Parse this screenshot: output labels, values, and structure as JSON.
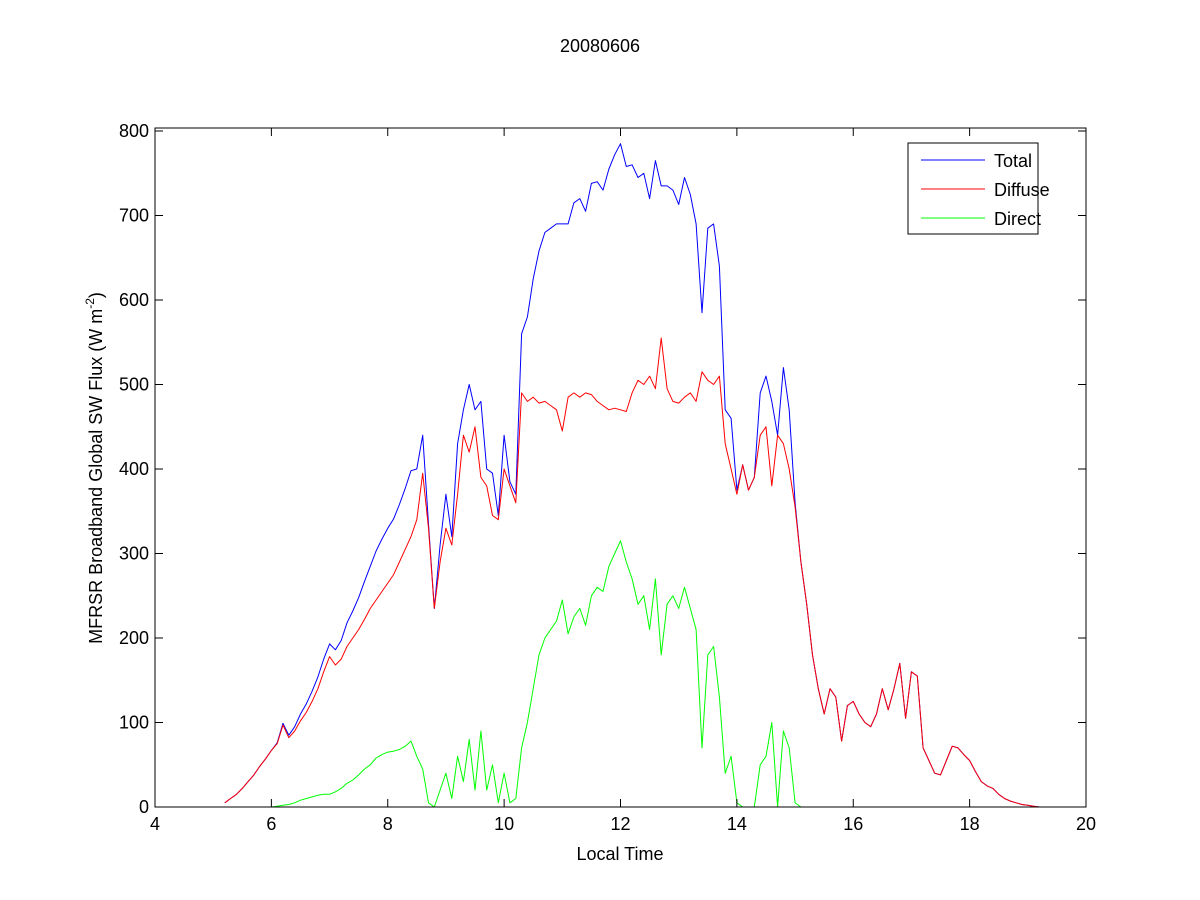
{
  "chart_data": {
    "type": "line",
    "title": "20080606",
    "xlabel": "Local Time",
    "ylabel": "MFRSR Broadband Global SW Flux (W m",
    "ylabel_superscript": "-2",
    "ylabel_suffix": ")",
    "xlim": [
      4,
      20
    ],
    "ylim": [
      0,
      800
    ],
    "xticks": [
      4,
      6,
      8,
      10,
      12,
      14,
      16,
      18,
      20
    ],
    "yticks": [
      0,
      100,
      200,
      300,
      400,
      500,
      600,
      700,
      800
    ],
    "grid": false,
    "legend_position": "top-right",
    "x": {
      "start": 5.2,
      "step": 0.1
    },
    "series": [
      {
        "name": "Total",
        "color": "#0000ff",
        "values": [
          5,
          10,
          15,
          22,
          30,
          38,
          48,
          57,
          67,
          76,
          99,
          85,
          95,
          110,
          122,
          137,
          154,
          175,
          193,
          186,
          197,
          218,
          232,
          248,
          267,
          285,
          303,
          317,
          330,
          341,
          358,
          377,
          398,
          400,
          440,
          335,
          235,
          310,
          370,
          320,
          430,
          470,
          500,
          470,
          480,
          400,
          395,
          345,
          440,
          385,
          370,
          560,
          580,
          625,
          658,
          680,
          685,
          690,
          690,
          690,
          715,
          720,
          705,
          738,
          740,
          730,
          755,
          772,
          785,
          758,
          760,
          745,
          750,
          720,
          765,
          735,
          735,
          730,
          713,
          745,
          725,
          690,
          585,
          685,
          690,
          640,
          470,
          460,
          375,
          405,
          375,
          390,
          490,
          510,
          480,
          440,
          520,
          470,
          360,
          290,
          240,
          180,
          140,
          110,
          140,
          130,
          78,
          120,
          125,
          110,
          100,
          95,
          110,
          140,
          115,
          140,
          170,
          105,
          160,
          155,
          70,
          55,
          40,
          38,
          55,
          72,
          70,
          62,
          55,
          42,
          30,
          25,
          22,
          15,
          10,
          7,
          5,
          3,
          2,
          1,
          0
        ]
      },
      {
        "name": "Diffuse",
        "color": "#ff0000",
        "values": [
          5,
          10,
          15,
          22,
          30,
          38,
          48,
          57,
          67,
          75,
          97,
          82,
          90,
          102,
          112,
          125,
          140,
          160,
          178,
          168,
          175,
          190,
          200,
          210,
          222,
          235,
          245,
          255,
          265,
          275,
          290,
          305,
          320,
          340,
          395,
          330,
          235,
          290,
          330,
          310,
          370,
          440,
          420,
          450,
          390,
          380,
          345,
          340,
          400,
          380,
          360,
          490,
          480,
          485,
          478,
          480,
          475,
          470,
          445,
          485,
          490,
          485,
          490,
          488,
          480,
          475,
          470,
          472,
          470,
          468,
          490,
          505,
          500,
          510,
          495,
          555,
          495,
          480,
          478,
          485,
          490,
          480,
          515,
          505,
          500,
          510,
          430,
          400,
          370,
          405,
          375,
          390,
          440,
          450,
          380,
          440,
          430,
          400,
          355,
          290,
          240,
          180,
          140,
          110,
          140,
          130,
          78,
          120,
          125,
          110,
          100,
          95,
          110,
          140,
          115,
          140,
          170,
          105,
          160,
          155,
          70,
          55,
          40,
          38,
          55,
          72,
          70,
          62,
          55,
          42,
          30,
          25,
          22,
          15,
          10,
          7,
          5,
          3,
          2,
          1,
          0
        ]
      },
      {
        "name": "Direct",
        "color": "#00ff00",
        "values": [
          0,
          0,
          0,
          0,
          0,
          0,
          0,
          0,
          0,
          1,
          2,
          3,
          5,
          8,
          10,
          12,
          14,
          15,
          15,
          18,
          22,
          28,
          32,
          38,
          45,
          50,
          58,
          62,
          65,
          66,
          68,
          72,
          78,
          60,
          45,
          5,
          0,
          20,
          40,
          10,
          60,
          30,
          80,
          20,
          90,
          20,
          50,
          5,
          40,
          5,
          10,
          70,
          100,
          140,
          180,
          200,
          210,
          220,
          245,
          205,
          225,
          235,
          215,
          250,
          260,
          255,
          285,
          300,
          315,
          290,
          270,
          240,
          250,
          210,
          270,
          180,
          240,
          250,
          235,
          260,
          235,
          210,
          70,
          180,
          190,
          130,
          40,
          60,
          5,
          0,
          0,
          0,
          50,
          60,
          100,
          0,
          90,
          70,
          5,
          0,
          0,
          0,
          0,
          0,
          0,
          0,
          0,
          0,
          0,
          0,
          0,
          0,
          0,
          0,
          0,
          0,
          0,
          0,
          0,
          0,
          0,
          0,
          0,
          0,
          0,
          0,
          0,
          0,
          0,
          0,
          0,
          0,
          0,
          0,
          0,
          0,
          0,
          0,
          0,
          0,
          0
        ]
      }
    ]
  }
}
